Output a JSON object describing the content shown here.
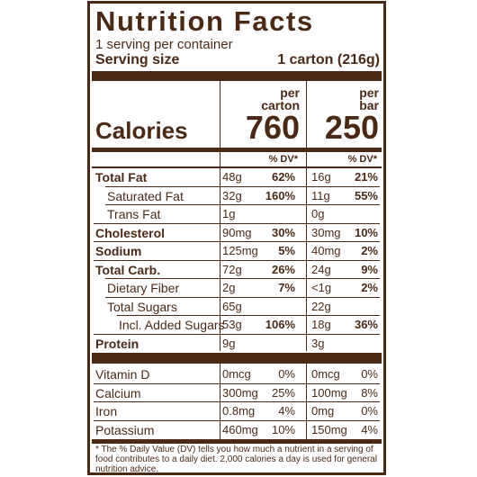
{
  "title": "Nutrition Facts",
  "servings_per_container": "1 serving per container",
  "serving_size": {
    "label": "Serving size",
    "value": "1 carton (216g)"
  },
  "columns": [
    {
      "header_line1": "per",
      "header_line2": "carton",
      "calories": "760"
    },
    {
      "header_line1": "per",
      "header_line2": "bar",
      "calories": "250"
    }
  ],
  "calories_label": "Calories",
  "dv_header": "% DV*",
  "nutrients": [
    {
      "name": "Total Fat",
      "bold": true,
      "indent": 0,
      "c1_amt": "48g",
      "c1_dv": "62%",
      "c2_amt": "16g",
      "c2_dv": "21%"
    },
    {
      "name": "Saturated Fat",
      "bold": false,
      "indent": 1,
      "c1_amt": "32g",
      "c1_dv": "160%",
      "c2_amt": "11g",
      "c2_dv": "55%"
    },
    {
      "name": "Trans Fat",
      "bold": false,
      "indent": 1,
      "c1_amt": "1g",
      "c1_dv": "",
      "c2_amt": "0g",
      "c2_dv": ""
    },
    {
      "name": "Cholesterol",
      "bold": true,
      "indent": 0,
      "c1_amt": "90mg",
      "c1_dv": "30%",
      "c2_amt": "30mg",
      "c2_dv": "10%"
    },
    {
      "name": "Sodium",
      "bold": true,
      "indent": 0,
      "c1_amt": "125mg",
      "c1_dv": "5%",
      "c2_amt": "40mg",
      "c2_dv": "2%"
    },
    {
      "name": "Total Carb.",
      "bold": true,
      "indent": 0,
      "c1_amt": "72g",
      "c1_dv": "26%",
      "c2_amt": "24g",
      "c2_dv": "9%"
    },
    {
      "name": "Dietary Fiber",
      "bold": false,
      "indent": 1,
      "c1_amt": "2g",
      "c1_dv": "7%",
      "c2_amt": "<1g",
      "c2_dv": "2%"
    },
    {
      "name": "Total Sugars",
      "bold": false,
      "indent": 1,
      "c1_amt": "65g",
      "c1_dv": "",
      "c2_amt": "22g",
      "c2_dv": ""
    },
    {
      "name": "Incl. Added Sugars",
      "bold": false,
      "indent": 2,
      "c1_amt": "53g",
      "c1_dv": "106%",
      "c2_amt": "18g",
      "c2_dv": "36%"
    },
    {
      "name": "Protein",
      "bold": true,
      "indent": 0,
      "c1_amt": "9g",
      "c1_dv": "",
      "c2_amt": "3g",
      "c2_dv": ""
    }
  ],
  "vitamins": [
    {
      "name": "Vitamin D",
      "c1_amt": "0mcg",
      "c1_dv": "0%",
      "c2_amt": "0mcg",
      "c2_dv": "0%"
    },
    {
      "name": "Calcium",
      "c1_amt": "300mg",
      "c1_dv": "25%",
      "c2_amt": "100mg",
      "c2_dv": "8%"
    },
    {
      "name": "Iron",
      "c1_amt": "0.8mg",
      "c1_dv": "4%",
      "c2_amt": "0mg",
      "c2_dv": "0%"
    },
    {
      "name": "Potassium",
      "c1_amt": "460mg",
      "c1_dv": "10%",
      "c2_amt": "150mg",
      "c2_dv": "4%"
    }
  ],
  "footnote": "* The % Daily Value (DV) tells you how much a nutrient in a serving of food contributes to a daily diet. 2,000 calories a day is used for general nutrition advice.",
  "colors": {
    "ink": "#4a2a17",
    "background": "#ffffff"
  }
}
